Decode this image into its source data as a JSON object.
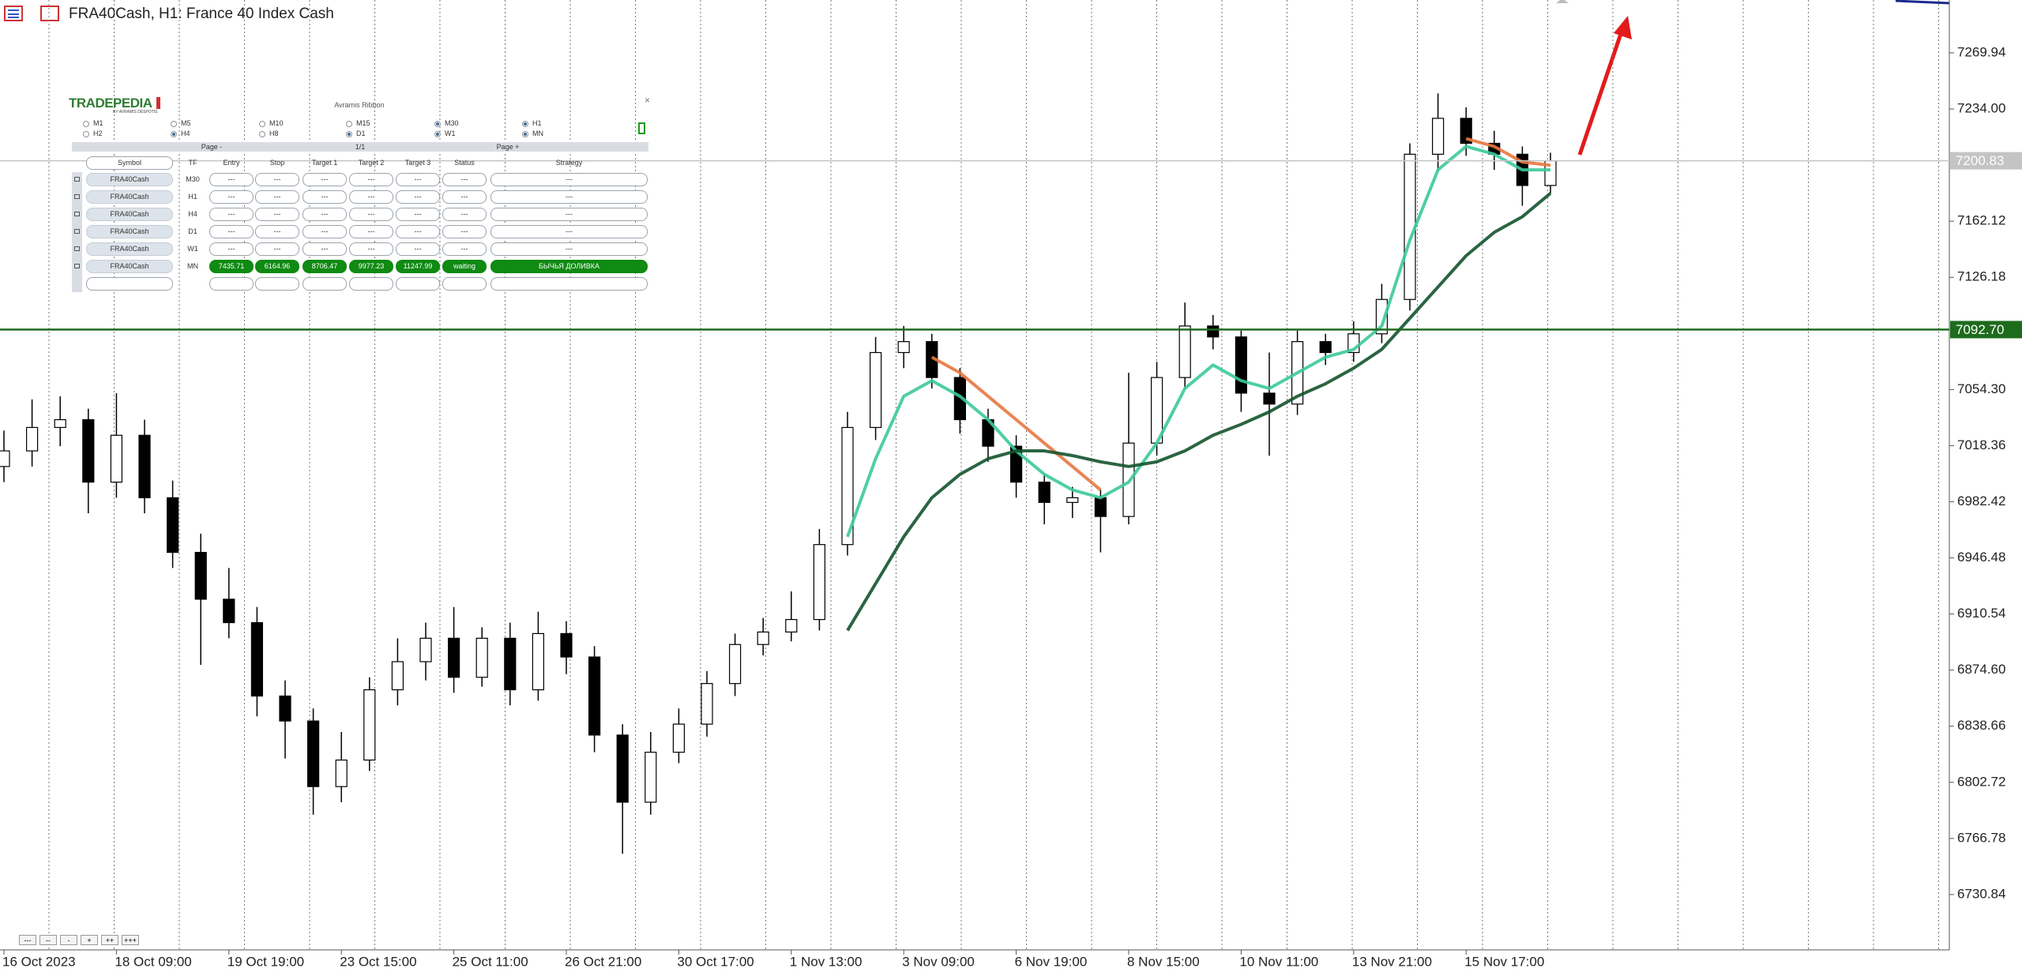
{
  "header": {
    "title": "FRA40Cash, H1:  France 40 Index Cash"
  },
  "chart_data": {
    "type": "candlestick",
    "categories": [
      "16 Oct 2023",
      null,
      null,
      null,
      "18 Oct 09:00",
      null,
      null,
      null,
      "19 Oct 19:00",
      null,
      null,
      null,
      "23 Oct 15:00",
      null,
      null,
      null,
      "25 Oct 11:00",
      null,
      null,
      null,
      "26 Oct 21:00",
      null,
      null,
      null,
      "30 Oct 17:00",
      null,
      null,
      null,
      "1 Nov 13:00",
      null,
      null,
      null,
      "3 Nov 09:00",
      null,
      null,
      null,
      "6 Nov 19:00",
      null,
      null,
      null,
      "8 Nov 15:00",
      null,
      null,
      null,
      "10 Nov 11:00",
      null,
      null,
      null,
      "13 Nov 21:00",
      null,
      null,
      null,
      "15 Nov 17:00",
      null,
      null,
      null
    ],
    "open": [
      7005,
      7015,
      7030,
      7035,
      6995,
      7025,
      6985,
      6950,
      6920,
      6905,
      6858,
      6842,
      6800,
      6817,
      6862,
      6880,
      6895,
      6870,
      6895,
      6862,
      6898,
      6883,
      6833,
      6790,
      6822,
      6840,
      6866,
      6891,
      6899,
      6907,
      6955,
      7030,
      7078,
      7085,
      7062,
      7035,
      7018,
      6995,
      6982,
      6985,
      6973,
      7020,
      7062,
      7095,
      7088,
      7052,
      7045,
      7085,
      7078,
      7090,
      7112,
      7205,
      7228,
      7212,
      7205,
      7185
    ],
    "high": [
      7028,
      7048,
      7050,
      7042,
      7052,
      7035,
      6996,
      6962,
      6940,
      6915,
      6868,
      6850,
      6835,
      6870,
      6895,
      6905,
      6915,
      6902,
      6905,
      6912,
      6906,
      6890,
      6840,
      6835,
      6850,
      6874,
      6898,
      6908,
      6925,
      6965,
      7040,
      7088,
      7095,
      7090,
      7068,
      7042,
      7025,
      7000,
      6992,
      6990,
      7065,
      7072,
      7110,
      7102,
      7092,
      7078,
      7092,
      7090,
      7098,
      7122,
      7212,
      7244,
      7235,
      7220,
      7210,
      7206
    ],
    "low": [
      6995,
      7005,
      7018,
      6975,
      6985,
      6975,
      6940,
      6878,
      6895,
      6845,
      6818,
      6782,
      6790,
      6810,
      6852,
      6868,
      6860,
      6864,
      6852,
      6855,
      6872,
      6822,
      6757,
      6782,
      6815,
      6832,
      6858,
      6884,
      6893,
      6900,
      6948,
      7022,
      7068,
      7055,
      7026,
      7008,
      6985,
      6968,
      6972,
      6950,
      6968,
      7012,
      7055,
      7080,
      7040,
      7012,
      7038,
      7070,
      7072,
      7084,
      7105,
      7195,
      7204,
      7195,
      7172,
      7180
    ],
    "close": [
      7015,
      7030,
      7035,
      6995,
      7025,
      6985,
      6950,
      6920,
      6905,
      6858,
      6842,
      6800,
      6817,
      6862,
      6880,
      6895,
      6870,
      6895,
      6862,
      6898,
      6883,
      6833,
      6790,
      6822,
      6840,
      6866,
      6891,
      6899,
      6907,
      6955,
      7030,
      7078,
      7085,
      7062,
      7035,
      7018,
      6995,
      6982,
      6985,
      6973,
      7020,
      7062,
      7095,
      7088,
      7052,
      7045,
      7085,
      7078,
      7090,
      7112,
      7205,
      7228,
      7212,
      7205,
      7185,
      7200.83
    ],
    "up_color": "#ffffff",
    "down_color": "#000000",
    "wick_color": "#000000",
    "overlays": [
      {
        "color": "#3cc99b",
        "values": [
          null,
          null,
          null,
          null,
          null,
          null,
          null,
          null,
          null,
          null,
          null,
          null,
          null,
          null,
          null,
          null,
          null,
          null,
          null,
          null,
          null,
          null,
          null,
          null,
          null,
          null,
          null,
          null,
          null,
          null,
          6960,
          7010,
          7050,
          7060,
          7050,
          7035,
          7015,
          7000,
          6990,
          6985,
          6995,
          7020,
          7055,
          7070,
          7060,
          7055,
          7065,
          7075,
          7080,
          7095,
          7150,
          7195,
          7210,
          7205,
          7195,
          7195
        ]
      },
      {
        "color": "#e8773f",
        "values": [
          null,
          null,
          null,
          null,
          null,
          null,
          null,
          null,
          null,
          null,
          null,
          null,
          null,
          null,
          null,
          null,
          null,
          null,
          null,
          null,
          null,
          null,
          null,
          null,
          null,
          null,
          null,
          null,
          null,
          null,
          null,
          null,
          null,
          7075,
          7065,
          7050,
          7035,
          7020,
          7005,
          6990,
          null,
          null,
          null,
          null,
          null,
          null,
          null,
          null,
          null,
          null,
          null,
          null,
          7215,
          7210,
          7200,
          7198
        ]
      },
      {
        "color": "#14532d",
        "values": [
          null,
          null,
          null,
          null,
          null,
          null,
          null,
          null,
          null,
          null,
          null,
          null,
          null,
          null,
          null,
          null,
          null,
          null,
          null,
          null,
          null,
          null,
          null,
          null,
          null,
          null,
          null,
          null,
          null,
          null,
          6900,
          6930,
          6960,
          6985,
          7000,
          7010,
          7015,
          7015,
          7012,
          7008,
          7005,
          7008,
          7015,
          7025,
          7032,
          7040,
          7050,
          7058,
          7068,
          7080,
          7100,
          7120,
          7140,
          7155,
          7165,
          7180
        ]
      }
    ],
    "ylim": [
      6695.4,
      7303.8
    ],
    "yticks": [
      7269.94,
      {
        "value": 7234,
        "label": "7234.00"
      },
      7162.12,
      7126.18,
      {
        "value": 7054.3,
        "label": "7054.30"
      },
      7018.36,
      6982.42,
      6946.48,
      6910.54,
      {
        "value": 6874.6,
        "label": "6874.60"
      },
      6838.66,
      6802.72,
      6766.78,
      6730.84
    ],
    "price_lines": [
      {
        "value": 7200.83,
        "color": "#c4c4c4"
      },
      {
        "value": 7092.7,
        "label": "7092.70",
        "color": "#1d6b1d"
      }
    ]
  },
  "panel": {
    "logo": "TRADEPEDIA",
    "logo_sub": "BY AVRAMIS DESPOTIS",
    "title": "Avramis Ribbon",
    "close": "×",
    "timeframes": [
      {
        "label": "M1",
        "checked": false
      },
      {
        "label": "M5",
        "checked": false
      },
      {
        "label": "M10",
        "checked": false
      },
      {
        "label": "M15",
        "checked": false
      },
      {
        "label": "M30",
        "checked": true
      },
      {
        "label": "H1",
        "checked": true
      },
      {
        "label": "H2",
        "checked": false
      },
      {
        "label": "H4",
        "checked": true
      },
      {
        "label": "H8",
        "checked": false
      },
      {
        "label": "D1",
        "checked": true
      },
      {
        "label": "W1",
        "checked": true
      },
      {
        "label": "MN",
        "checked": true
      }
    ],
    "pager": [
      "Page -",
      "1/1",
      "Page +"
    ],
    "columns": [
      "Symbol",
      "TF",
      "Entry",
      "Stop",
      "Target 1",
      "Target 2",
      "Target 3",
      "Status",
      "Strategy"
    ],
    "rows": [
      {
        "active": false,
        "cells": [
          "FRA40Cash",
          "M30",
          "---",
          "---",
          "---",
          "---",
          "---",
          "---",
          "---"
        ]
      },
      {
        "active": false,
        "cells": [
          "FRA40Cash",
          "H1",
          "---",
          "---",
          "---",
          "---",
          "---",
          "---",
          "---"
        ]
      },
      {
        "active": false,
        "cells": [
          "FRA40Cash",
          "H4",
          "---",
          "---",
          "---",
          "---",
          "---",
          "---",
          "---"
        ]
      },
      {
        "active": false,
        "cells": [
          "FRA40Cash",
          "D1",
          "---",
          "---",
          "---",
          "---",
          "---",
          "---",
          "---"
        ]
      },
      {
        "active": false,
        "cells": [
          "FRA40Cash",
          "W1",
          "---",
          "---",
          "---",
          "---",
          "---",
          "---",
          "---"
        ]
      },
      {
        "active": true,
        "cells": [
          "FRA40Cash",
          "MN",
          "7435.71",
          "6164.96",
          "8706.47",
          "9977.23",
          "11247.99",
          "waiting",
          "БЫЧЬЯ ДОЛИВКА"
        ]
      }
    ]
  },
  "zoom_buttons": [
    "---",
    "--",
    "-",
    "+",
    "++",
    "+++"
  ]
}
